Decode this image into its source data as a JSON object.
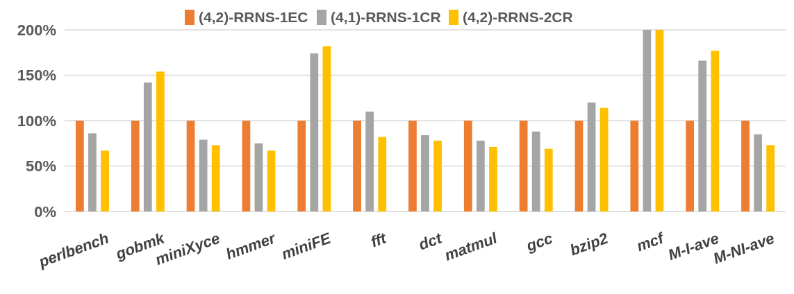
{
  "chart_data": {
    "type": "bar",
    "categories": [
      "perlbench",
      "gobmk",
      "miniXyce",
      "hmmer",
      "miniFE",
      "fft",
      "dct",
      "matmul",
      "gcc",
      "bzip2",
      "mcf",
      "M-I-ave",
      "M-NI-ave"
    ],
    "series": [
      {
        "name": "(4,2)-RRNS-1EC",
        "color": "#ed7d31",
        "values": [
          100,
          100,
          100,
          100,
          100,
          100,
          100,
          100,
          100,
          100,
          100,
          100,
          100
        ]
      },
      {
        "name": "(4,1)-RRNS-1CR",
        "color": "#a5a5a5",
        "values": [
          86,
          142,
          79,
          75,
          174,
          110,
          84,
          78,
          88,
          120,
          200,
          166,
          85
        ]
      },
      {
        "name": "(4,2)-RRNS-2CR",
        "color": "#ffc000",
        "values": [
          67,
          154,
          73,
          67,
          182,
          82,
          78,
          71,
          69,
          114,
          200,
          177,
          73
        ]
      }
    ],
    "ylim": [
      0,
      200
    ],
    "yticks": [
      {
        "value": 0,
        "label": "0%"
      },
      {
        "value": 50,
        "label": "50%"
      },
      {
        "value": 100,
        "label": "100%"
      },
      {
        "value": 150,
        "label": "150%"
      },
      {
        "value": 200,
        "label": "200%"
      }
    ],
    "grid": "y",
    "legend": "top"
  }
}
